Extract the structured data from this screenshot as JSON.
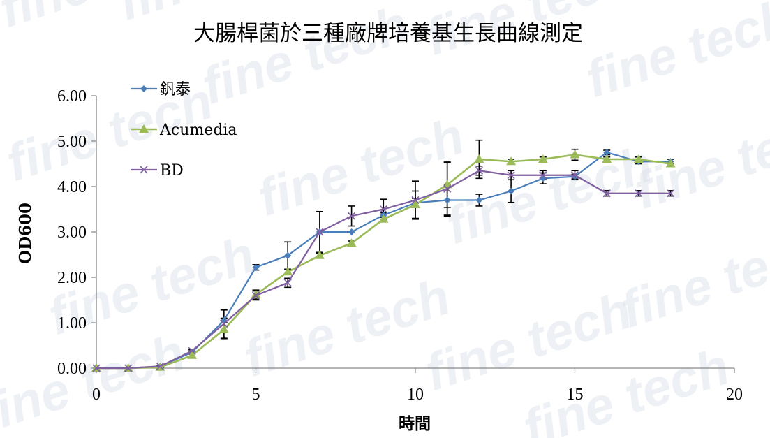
{
  "chart_data": {
    "type": "line",
    "title": "大腸桿菌於三種廠牌培養基生長曲線測定",
    "xlabel": "時間",
    "ylabel": "OD600",
    "xlim": [
      0,
      20
    ],
    "ylim": [
      0,
      6
    ],
    "xticks": [
      "0",
      "5",
      "10",
      "15",
      "20"
    ],
    "yticks": [
      "0.00",
      "1.00",
      "2.00",
      "3.00",
      "4.00",
      "5.00",
      "6.00"
    ],
    "legend_position": "top-left",
    "grid": false,
    "x": [
      0,
      1,
      2,
      3,
      4,
      5,
      6,
      7,
      8,
      9,
      10,
      11,
      12,
      13,
      14,
      15,
      16,
      17,
      18
    ],
    "series": [
      {
        "name": "釩泰",
        "color": "#4a7ebb",
        "marker": "diamond",
        "values": [
          0.0,
          0.0,
          0.04,
          0.35,
          1.05,
          2.22,
          2.48,
          3.0,
          3.0,
          3.37,
          3.64,
          3.7,
          3.7,
          3.9,
          4.18,
          4.22,
          4.75,
          4.55,
          4.55
        ],
        "errors": [
          0,
          0,
          0.02,
          0.03,
          0.05,
          0.06,
          0.3,
          0.0,
          0.0,
          0.05,
          0.1,
          0.35,
          0.13,
          0.25,
          0.12,
          0.05,
          0.05,
          0.05,
          0.05
        ]
      },
      {
        "name": "Acumedia",
        "color": "#9bbb59",
        "marker": "triangle",
        "values": [
          0.0,
          0.0,
          0.02,
          0.28,
          0.85,
          1.62,
          2.12,
          2.48,
          2.75,
          3.28,
          3.6,
          4.04,
          4.6,
          4.55,
          4.6,
          4.7,
          4.6,
          4.6,
          4.5
        ],
        "errors": [
          0,
          0,
          0.01,
          0.03,
          0.2,
          0.1,
          0.05,
          0.05,
          0.05,
          0.05,
          0.3,
          0.5,
          0.42,
          0.05,
          0.05,
          0.12,
          0.05,
          0.05,
          0.05
        ]
      },
      {
        "name": "BD",
        "color": "#7f5fa0",
        "marker": "x",
        "values": [
          0.0,
          0.0,
          0.04,
          0.38,
          0.98,
          1.6,
          1.88,
          3.0,
          3.35,
          3.5,
          3.7,
          3.95,
          4.35,
          4.25,
          4.25,
          4.25,
          3.85,
          3.85,
          3.85
        ],
        "errors": [
          0,
          0,
          0.02,
          0.03,
          0.3,
          0.1,
          0.1,
          0.45,
          0.22,
          0.22,
          0.42,
          0.58,
          0.1,
          0.1,
          0.1,
          0.1,
          0.06,
          0.06,
          0.06
        ]
      }
    ]
  },
  "watermark": {
    "text": "fine tech",
    "color": "#dfe4ec"
  }
}
